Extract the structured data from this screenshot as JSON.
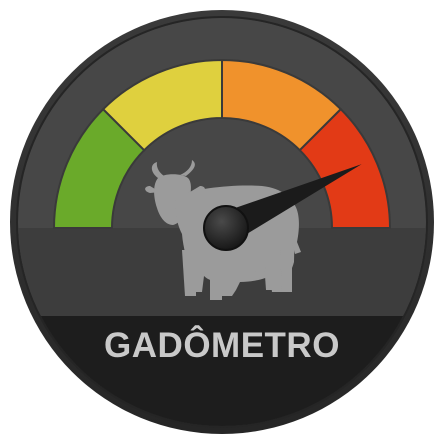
{
  "gauge": {
    "title": "GADÔMETRO",
    "level": 0.86,
    "zones": [
      {
        "name": "green",
        "color": "#6aaa2a"
      },
      {
        "name": "yellow",
        "color": "#dfd03e"
      },
      {
        "name": "orange",
        "color": "#f0922c"
      },
      {
        "name": "red",
        "color": "#e23a16"
      }
    ],
    "icon": "cow-icon",
    "colors": {
      "bezel": "#2f2f2f",
      "face": "#474747",
      "band": "#3d3d3d",
      "label_bar": "#1d1d1d",
      "cow": "#9b9b9b",
      "needle": "#1b1b1b",
      "label_text": "#c9c9c9"
    }
  }
}
